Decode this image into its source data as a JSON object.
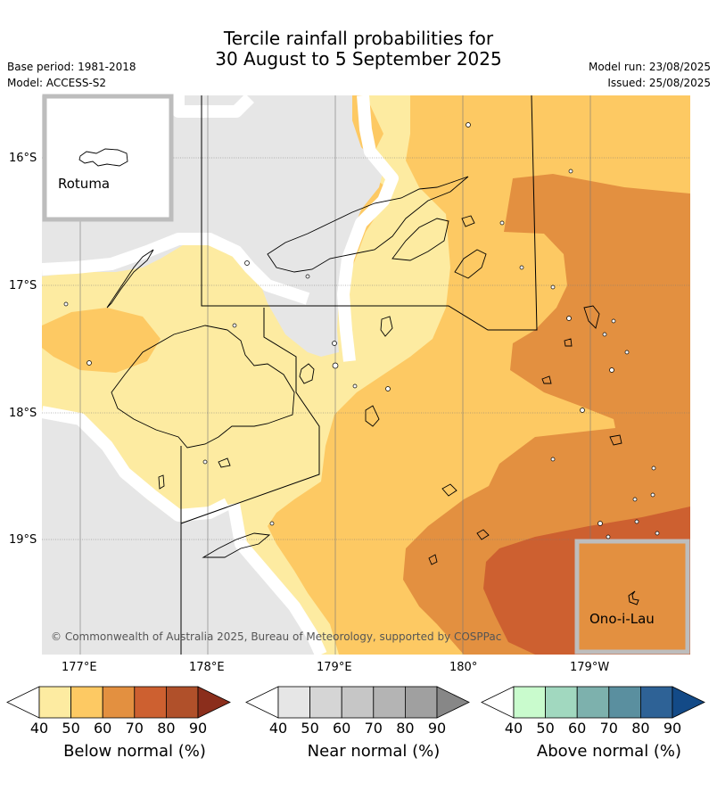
{
  "title": {
    "line1": "Tercile rainfall probabilities for",
    "line2": "30 August to 5 September 2025"
  },
  "meta": {
    "base_period": "Base period: 1981-2018",
    "model": "Model: ACCESS-S2",
    "model_run": "Model run: 23/08/2025",
    "issued": "Issued: 25/08/2025"
  },
  "map": {
    "lat_labels": [
      "16°S",
      "17°S",
      "18°S",
      "19°S"
    ],
    "lon_labels": [
      "177°E",
      "178°E",
      "179°E",
      "180°",
      "179°W"
    ],
    "inset_rotuma": "Rotuma",
    "inset_onoilau": "Ono-i-Lau",
    "copyright": "© Commonwealth of Australia 2025, Bureau of Meteorology, supported by COSPPac",
    "colors": {
      "below_40_50": "#fdeba1",
      "below_50_60": "#fdc963",
      "below_60_70": "#e39040",
      "below_70_80": "#cd6030",
      "near_40_50": "#e6e6e6",
      "land_outline": "#000000"
    }
  },
  "colorbars": [
    {
      "label": "Below normal (%)",
      "ticks": [
        "40",
        "50",
        "60",
        "70",
        "80",
        "90"
      ],
      "colors": [
        "#ffffff",
        "#fdeba1",
        "#fdc963",
        "#e39040",
        "#cd6030",
        "#b0502a",
        "#8b2e1c"
      ]
    },
    {
      "label": "Near normal (%)",
      "ticks": [
        "40",
        "50",
        "60",
        "70",
        "80",
        "90"
      ],
      "colors": [
        "#ffffff",
        "#e6e6e6",
        "#d5d5d5",
        "#c6c6c6",
        "#b4b4b4",
        "#a0a0a0",
        "#878787"
      ]
    },
    {
      "label": "Above normal (%)",
      "ticks": [
        "40",
        "50",
        "60",
        "70",
        "80",
        "90"
      ],
      "colors": [
        "#ffffff",
        "#c9fbcd",
        "#a1d8bf",
        "#7db1ad",
        "#5a8f9f",
        "#2e6296",
        "#134a87"
      ]
    }
  ]
}
